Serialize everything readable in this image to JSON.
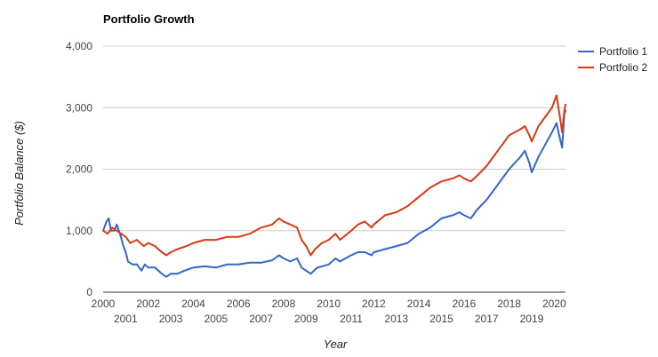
{
  "chart_data": {
    "type": "line",
    "title": "Portfolio Growth",
    "xlabel": "Year",
    "ylabel": "Portfolio Balance ($)",
    "xlim": [
      2000,
      2020.5
    ],
    "ylim": [
      0,
      4000
    ],
    "y_ticks": [
      {
        "value": 0,
        "label": "0"
      },
      {
        "value": 1000,
        "label": "1,000"
      },
      {
        "value": 2000,
        "label": "2,000"
      },
      {
        "value": 3000,
        "label": "3,000"
      },
      {
        "value": 4000,
        "label": "4,000"
      }
    ],
    "x_ticks_upper": [
      "2000",
      "2002",
      "2004",
      "2006",
      "2008",
      "2010",
      "2012",
      "2014",
      "2016",
      "2018",
      "2020"
    ],
    "x_ticks_lower": [
      "2001",
      "2003",
      "2005",
      "2007",
      "2009",
      "2011",
      "2013",
      "2015",
      "2017",
      "2019"
    ],
    "grid": true,
    "legend_position": "top-right",
    "series": [
      {
        "name": "Portfolio 1",
        "color": "#3366cc",
        "points": [
          [
            2000.0,
            1000
          ],
          [
            2000.15,
            1150
          ],
          [
            2000.25,
            1200
          ],
          [
            2000.35,
            1000
          ],
          [
            2000.5,
            1000
          ],
          [
            2000.6,
            1100
          ],
          [
            2000.75,
            950
          ],
          [
            2000.9,
            750
          ],
          [
            2001.0,
            650
          ],
          [
            2001.1,
            500
          ],
          [
            2001.3,
            450
          ],
          [
            2001.5,
            450
          ],
          [
            2001.7,
            350
          ],
          [
            2001.85,
            450
          ],
          [
            2002.0,
            400
          ],
          [
            2002.3,
            400
          ],
          [
            2002.6,
            300
          ],
          [
            2002.8,
            250
          ],
          [
            2003.0,
            300
          ],
          [
            2003.3,
            300
          ],
          [
            2003.6,
            350
          ],
          [
            2004.0,
            400
          ],
          [
            2004.5,
            420
          ],
          [
            2005.0,
            400
          ],
          [
            2005.5,
            450
          ],
          [
            2006.0,
            450
          ],
          [
            2006.5,
            480
          ],
          [
            2007.0,
            480
          ],
          [
            2007.5,
            520
          ],
          [
            2007.8,
            600
          ],
          [
            2008.0,
            550
          ],
          [
            2008.3,
            500
          ],
          [
            2008.6,
            550
          ],
          [
            2008.8,
            400
          ],
          [
            2009.0,
            350
          ],
          [
            2009.2,
            300
          ],
          [
            2009.5,
            400
          ],
          [
            2010.0,
            450
          ],
          [
            2010.3,
            550
          ],
          [
            2010.5,
            500
          ],
          [
            2011.0,
            600
          ],
          [
            2011.3,
            650
          ],
          [
            2011.6,
            650
          ],
          [
            2011.9,
            600
          ],
          [
            2012.0,
            650
          ],
          [
            2012.5,
            700
          ],
          [
            2013.0,
            750
          ],
          [
            2013.5,
            800
          ],
          [
            2014.0,
            950
          ],
          [
            2014.5,
            1050
          ],
          [
            2015.0,
            1200
          ],
          [
            2015.5,
            1250
          ],
          [
            2015.8,
            1300
          ],
          [
            2016.0,
            1250
          ],
          [
            2016.3,
            1200
          ],
          [
            2016.6,
            1350
          ],
          [
            2017.0,
            1500
          ],
          [
            2017.5,
            1750
          ],
          [
            2018.0,
            2000
          ],
          [
            2018.5,
            2200
          ],
          [
            2018.7,
            2300
          ],
          [
            2018.9,
            2100
          ],
          [
            2019.0,
            1950
          ],
          [
            2019.3,
            2200
          ],
          [
            2019.6,
            2400
          ],
          [
            2019.9,
            2600
          ],
          [
            2020.1,
            2750
          ],
          [
            2020.25,
            2500
          ],
          [
            2020.35,
            2350
          ],
          [
            2020.45,
            2900
          ],
          [
            2020.5,
            2950
          ]
        ]
      },
      {
        "name": "Portfolio 2",
        "color": "#dc3912",
        "points": [
          [
            2000.0,
            1000
          ],
          [
            2000.2,
            950
          ],
          [
            2000.4,
            1050
          ],
          [
            2000.6,
            1000
          ],
          [
            2000.8,
            950
          ],
          [
            2001.0,
            900
          ],
          [
            2001.2,
            800
          ],
          [
            2001.5,
            850
          ],
          [
            2001.8,
            750
          ],
          [
            2002.0,
            800
          ],
          [
            2002.3,
            750
          ],
          [
            2002.6,
            650
          ],
          [
            2002.8,
            600
          ],
          [
            2003.0,
            650
          ],
          [
            2003.3,
            700
          ],
          [
            2003.7,
            750
          ],
          [
            2004.0,
            800
          ],
          [
            2004.5,
            850
          ],
          [
            2005.0,
            850
          ],
          [
            2005.5,
            900
          ],
          [
            2006.0,
            900
          ],
          [
            2006.5,
            950
          ],
          [
            2007.0,
            1050
          ],
          [
            2007.5,
            1100
          ],
          [
            2007.8,
            1200
          ],
          [
            2008.0,
            1150
          ],
          [
            2008.3,
            1100
          ],
          [
            2008.6,
            1050
          ],
          [
            2008.8,
            850
          ],
          [
            2009.0,
            750
          ],
          [
            2009.2,
            600
          ],
          [
            2009.4,
            700
          ],
          [
            2009.7,
            800
          ],
          [
            2010.0,
            850
          ],
          [
            2010.3,
            950
          ],
          [
            2010.5,
            850
          ],
          [
            2011.0,
            1000
          ],
          [
            2011.3,
            1100
          ],
          [
            2011.6,
            1150
          ],
          [
            2011.9,
            1050
          ],
          [
            2012.0,
            1100
          ],
          [
            2012.5,
            1250
          ],
          [
            2013.0,
            1300
          ],
          [
            2013.5,
            1400
          ],
          [
            2014.0,
            1550
          ],
          [
            2014.5,
            1700
          ],
          [
            2015.0,
            1800
          ],
          [
            2015.5,
            1850
          ],
          [
            2015.8,
            1900
          ],
          [
            2016.0,
            1850
          ],
          [
            2016.3,
            1800
          ],
          [
            2016.6,
            1900
          ],
          [
            2017.0,
            2050
          ],
          [
            2017.5,
            2300
          ],
          [
            2018.0,
            2550
          ],
          [
            2018.5,
            2650
          ],
          [
            2018.7,
            2700
          ],
          [
            2018.9,
            2550
          ],
          [
            2019.0,
            2450
          ],
          [
            2019.3,
            2700
          ],
          [
            2019.6,
            2850
          ],
          [
            2019.9,
            3000
          ],
          [
            2020.1,
            3200
          ],
          [
            2020.25,
            2850
          ],
          [
            2020.35,
            2600
          ],
          [
            2020.45,
            2950
          ],
          [
            2020.5,
            3050
          ]
        ]
      }
    ]
  }
}
